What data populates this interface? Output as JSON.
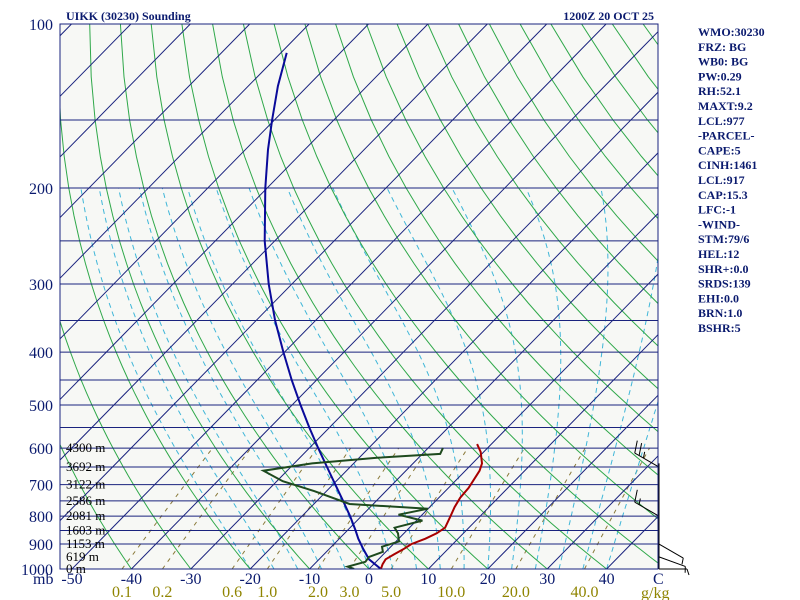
{
  "colors": {
    "background": "#ffffff",
    "plot_fill": "#f7f8f5",
    "isobar": "#1a237e",
    "isotherm": "#1a237e",
    "dry_adiabat": "#2fa84a",
    "moist_adiabat": "#3fb6d8",
    "mixing_ratio": "#8a7a3a",
    "temperature": "#a80000",
    "dewpoint": "#1e4a1e",
    "parcel": "#0a0a9a",
    "label": "#0a1a6e",
    "mix_label": "#8f8400"
  },
  "chart_data": {
    "type": "skew-t log-p sounding",
    "title": "UIKK (30230) Sounding",
    "time": "1200Z 20 OCT 25",
    "xlabel": "C",
    "ylabel": "mb",
    "x_unit_label": "g/kg",
    "pressure_range": [
      1000,
      100
    ],
    "temperature_range": [
      -50,
      50
    ],
    "pressure_levels": [
      1000,
      900,
      800,
      700,
      600,
      500,
      400,
      300,
      200,
      100
    ],
    "pressure_tick_labels": [
      "1000",
      "900",
      "800",
      "700",
      "600",
      "500",
      "400",
      "300",
      "200",
      "100"
    ],
    "minor_isobars": [
      850,
      750,
      650,
      550,
      450,
      350,
      250,
      150
    ],
    "temperature_ticks": [
      -50,
      -40,
      -30,
      -20,
      -10,
      0,
      10,
      20,
      30,
      40
    ],
    "temperature_tick_labels": [
      "-50",
      "-40",
      "-30",
      "-20",
      "-10",
      "0",
      "10",
      "20",
      "30",
      "40"
    ],
    "mixing_ratio_values": [
      0.1,
      0.2,
      0.6,
      1.0,
      2.0,
      3.0,
      5.0,
      10.0,
      20.0,
      40.0
    ],
    "mixing_ratio_labels": [
      "0.1",
      "0.2",
      "0.6",
      "1.0",
      "2.0",
      "3.0",
      "5.0",
      "10.0",
      "20.0",
      "40.0"
    ],
    "height_labels": [
      {
        "p": 600,
        "text": "4300 m"
      },
      {
        "p": 650,
        "text": "3692 m"
      },
      {
        "p": 700,
        "text": "3122 m"
      },
      {
        "p": 750,
        "text": "2586 m"
      },
      {
        "p": 800,
        "text": "2081 m"
      },
      {
        "p": 850,
        "text": "1603 m"
      },
      {
        "p": 900,
        "text": "1153 m"
      },
      {
        "p": 950,
        "text": "619 m"
      },
      {
        "p": 1000,
        "text": "0 m"
      }
    ],
    "temperature_profile": [
      [
        1000,
        2.0
      ],
      [
        980,
        1.5
      ],
      [
        960,
        1.2
      ],
      [
        940,
        1.8
      ],
      [
        920,
        2.5
      ],
      [
        900,
        3.0
      ],
      [
        880,
        4.5
      ],
      [
        860,
        5.5
      ],
      [
        840,
        6.0
      ],
      [
        800,
        5.0
      ],
      [
        770,
        4.2
      ],
      [
        740,
        3.6
      ],
      [
        710,
        3.4
      ],
      [
        690,
        3.0
      ],
      [
        660,
        2.4
      ],
      [
        640,
        1.6
      ],
      [
        610,
        -0.5
      ],
      [
        590,
        -2.4
      ]
    ],
    "dewpoint_profile": [
      [
        1000,
        -2.5
      ],
      [
        990,
        -4.0
      ],
      [
        970,
        -1.8
      ],
      [
        950,
        -2.0
      ],
      [
        930,
        -0.5
      ],
      [
        910,
        -1.5
      ],
      [
        890,
        0.5
      ],
      [
        860,
        -1.0
      ],
      [
        840,
        -2.5
      ],
      [
        815,
        1.0
      ],
      [
        795,
        -4.0
      ],
      [
        775,
        0.0
      ],
      [
        760,
        -14.0
      ],
      [
        720,
        -22.0
      ],
      [
        690,
        -29.0
      ],
      [
        660,
        -34.0
      ],
      [
        640,
        -27.0
      ],
      [
        625,
        -17.0
      ],
      [
        615,
        -7.0
      ],
      [
        600,
        -7.5
      ]
    ],
    "parcel_profile": [
      [
        1000,
        2.0
      ],
      [
        960,
        -1.6
      ],
      [
        920,
        -4.2
      ],
      [
        880,
        -6.8
      ],
      [
        850,
        -8.6
      ],
      [
        800,
        -11.9
      ],
      [
        750,
        -15.6
      ],
      [
        700,
        -19.6
      ],
      [
        650,
        -23.9
      ],
      [
        600,
        -28.5
      ],
      [
        550,
        -33.4
      ],
      [
        500,
        -38.6
      ],
      [
        450,
        -44.2
      ],
      [
        400,
        -50.2
      ],
      [
        350,
        -56.8
      ],
      [
        300,
        -63.9
      ],
      [
        250,
        -71.7
      ],
      [
        200,
        -80.3
      ],
      [
        170,
        -86.2
      ],
      [
        150,
        -90.4
      ],
      [
        130,
        -95.0
      ],
      [
        113,
        -99.0
      ]
    ],
    "wind_barbs": [
      {
        "p": 1000,
        "dir": 90,
        "speed": 5
      },
      {
        "p": 950,
        "dir": 110,
        "speed": 5
      },
      {
        "p": 900,
        "dir": 120,
        "speed": 5
      },
      {
        "p": 800,
        "dir": 300,
        "speed": 15
      },
      {
        "p": 650,
        "dir": 300,
        "speed": 25
      }
    ]
  },
  "indices": [
    "WMO:30230",
    "FRZ: BG",
    "WB0: BG",
    "PW:0.29",
    "RH:52.1",
    "MAXT:9.2",
    "LCL:977",
    "-PARCEL-",
    "CAPE:5",
    "CINH:1461",
    "LCL:917",
    "CAP:15.3",
    "LFC:-1",
    "-WIND-",
    "STM:79/6",
    "HEL:12",
    "SHR+:0.0",
    "SRDS:139",
    "EHI:0.0",
    "BRN:1.0",
    "BSHR:5"
  ]
}
